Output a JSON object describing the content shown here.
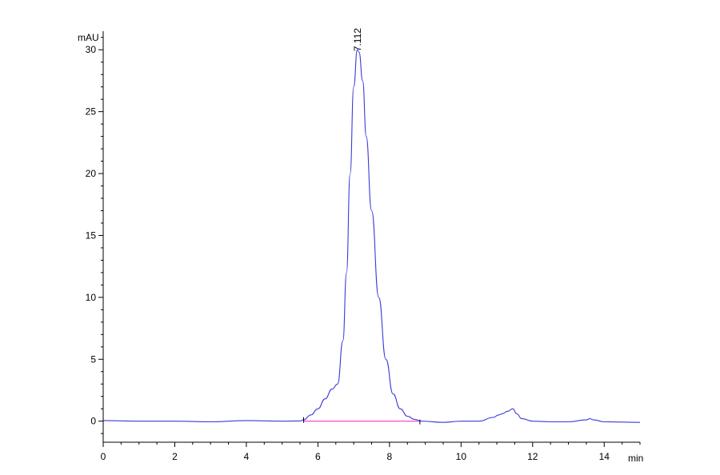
{
  "chart_data": {
    "type": "line",
    "title": "",
    "xlabel": "min",
    "ylabel": "mAU",
    "xlim": [
      0,
      15
    ],
    "ylim": [
      -1.7,
      31.5
    ],
    "x_ticks": [
      0,
      2,
      4,
      6,
      8,
      10,
      12,
      14
    ],
    "y_ticks": [
      0,
      5,
      10,
      15,
      20,
      25,
      30
    ],
    "grid": false,
    "peak_labels": [
      {
        "label": "7.112",
        "x": 7.112,
        "y": 30.0
      }
    ],
    "baseline_segment": {
      "x": [
        5.6,
        8.85
      ],
      "y": [
        0.0,
        0.0
      ]
    },
    "colors": {
      "trace": "#3a3ad8",
      "baseline": "#ff33cc",
      "axis": "#000000"
    },
    "series": [
      {
        "x": [
          0,
          1,
          2,
          3,
          4,
          5,
          5.5,
          5.6,
          5.8,
          6.0,
          6.2,
          6.4,
          6.55,
          6.7,
          6.8,
          6.9,
          7.0,
          7.1,
          7.15,
          7.25,
          7.35,
          7.5,
          7.7,
          7.9,
          8.1,
          8.3,
          8.5,
          8.7,
          8.9,
          9.5,
          10.0,
          10.5,
          10.9,
          11.05,
          11.15,
          11.3,
          11.45,
          11.55,
          11.7,
          12.0,
          12.5,
          13.0,
          13.5,
          13.6,
          13.7,
          14.0,
          15.0
        ],
        "y": [
          0.05,
          0.0,
          0.0,
          -0.05,
          0.05,
          0.0,
          0.02,
          0.1,
          0.5,
          1.0,
          1.8,
          2.6,
          3.0,
          6.5,
          12.0,
          20.0,
          27.0,
          30.0,
          29.8,
          27.5,
          23.0,
          17.0,
          10.0,
          5.0,
          2.2,
          1.0,
          0.4,
          0.15,
          0.0,
          -0.1,
          0.0,
          0.0,
          0.3,
          0.5,
          0.6,
          0.8,
          1.0,
          0.6,
          0.2,
          0.0,
          -0.05,
          -0.05,
          0.1,
          0.2,
          0.1,
          -0.05,
          -0.1
        ]
      }
    ]
  }
}
